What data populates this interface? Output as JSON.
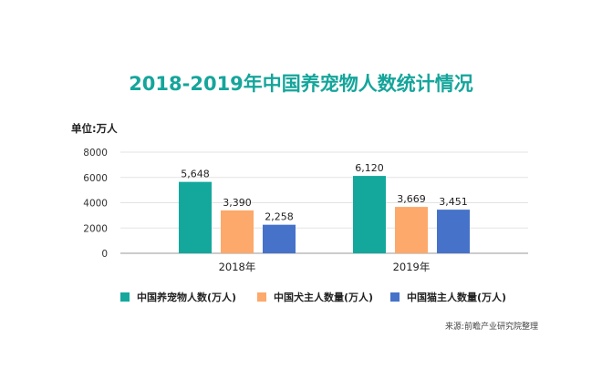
{
  "chart_data": {
    "type": "bar",
    "title": "2018-2019年中国养宠物人数统计情况",
    "unit_label": "单位:万人",
    "categories": [
      "2018年",
      "2019年"
    ],
    "series": [
      {
        "name": "中国养宠物人数(万人)",
        "values": [
          5648,
          6120
        ],
        "labels": [
          "5,648",
          "6,120"
        ],
        "color": "#14a89d"
      },
      {
        "name": "中国犬主人数量(万人)",
        "values": [
          3390,
          3669
        ],
        "labels": [
          "3,390",
          "3,669"
        ],
        "color": "#fca96b"
      },
      {
        "name": "中国猫主人数量(万人)",
        "values": [
          2258,
          3451
        ],
        "labels": [
          "2,258",
          "3,451"
        ],
        "color": "#4673c9"
      }
    ],
    "ylim": [
      0,
      8000
    ],
    "yticks": [
      "0",
      "2000",
      "4000",
      "6000",
      "8000"
    ],
    "grid": true,
    "legend_position": "bottom"
  },
  "source": "来源:前瞻产业研究院整理"
}
